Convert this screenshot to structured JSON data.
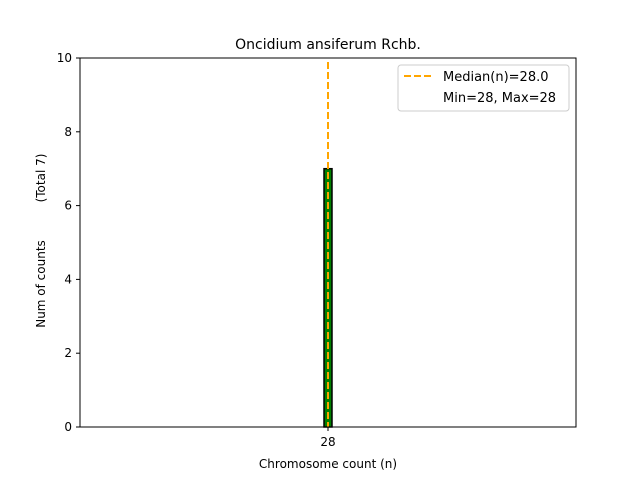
{
  "chart_data": {
    "type": "bar",
    "title": "Oncidium ansiferum Rchb.",
    "xlabel": "Chromosome count (n)",
    "ylabel": "Num of counts",
    "ylabel_total": "(Total 7)",
    "categories": [
      "28"
    ],
    "x": [
      28
    ],
    "values": [
      7
    ],
    "bar_width": 1,
    "xlim": [
      -3,
      59
    ],
    "ylim": [
      0,
      10
    ],
    "yticks": [
      0,
      2,
      4,
      6,
      8,
      10
    ],
    "xticks": [
      28
    ],
    "median": 28.0,
    "legend": {
      "placement": "top-right",
      "entries": [
        "Median(n)=28.0",
        "Min=28, Max=28"
      ]
    },
    "colors": {
      "bar": "#008000",
      "bar_edge": "#000000",
      "median": "#ffa500"
    },
    "grid": false
  }
}
